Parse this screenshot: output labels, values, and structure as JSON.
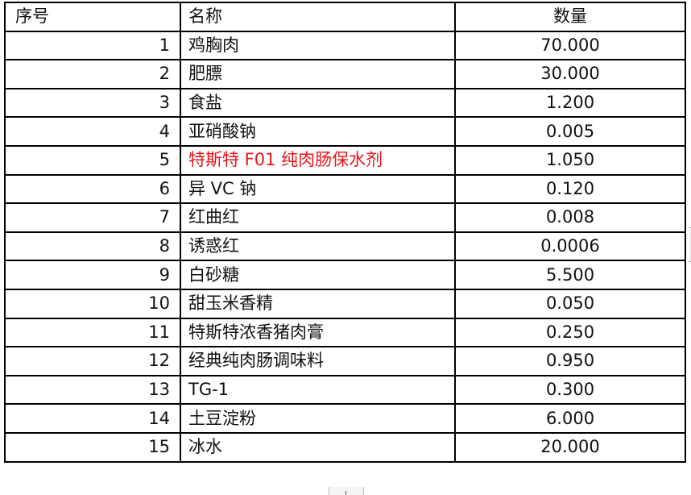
{
  "table": {
    "headers": {
      "no": "序号",
      "name": "名称",
      "qty": "数量"
    },
    "highlight_color": "#e8151b",
    "rows": [
      {
        "no": "1",
        "name": "鸡胸肉",
        "qty": "70.000"
      },
      {
        "no": "2",
        "name": "肥膘",
        "qty": "30.000"
      },
      {
        "no": "3",
        "name": "食盐",
        "qty": "1.200"
      },
      {
        "no": "4",
        "name": "亚硝酸钠",
        "qty": "0.005"
      },
      {
        "no": "5",
        "name": "特斯特 F01 纯肉肠保水剂",
        "qty": "1.050",
        "highlighted": true
      },
      {
        "no": "6",
        "name": "异 VC 钠",
        "qty": "0.120"
      },
      {
        "no": "7",
        "name": "红曲红",
        "qty": "0.008"
      },
      {
        "no": "8",
        "name": "诱惑红",
        "qty": "0.0006"
      },
      {
        "no": "9",
        "name": "白砂糖",
        "qty": "5.500"
      },
      {
        "no": "10",
        "name": "甜玉米香精",
        "qty": "0.050"
      },
      {
        "no": "11",
        "name": "特斯特浓香猪肉膏",
        "qty": "0.250"
      },
      {
        "no": "12",
        "name": "经典纯肉肠调味料",
        "qty": "0.950"
      },
      {
        "no": "13",
        "name": "TG-1",
        "qty": "0.300"
      },
      {
        "no": "14",
        "name": "土豆淀粉",
        "qty": "6.000"
      },
      {
        "no": "15",
        "name": "冰水",
        "qty": "20.000"
      }
    ]
  }
}
